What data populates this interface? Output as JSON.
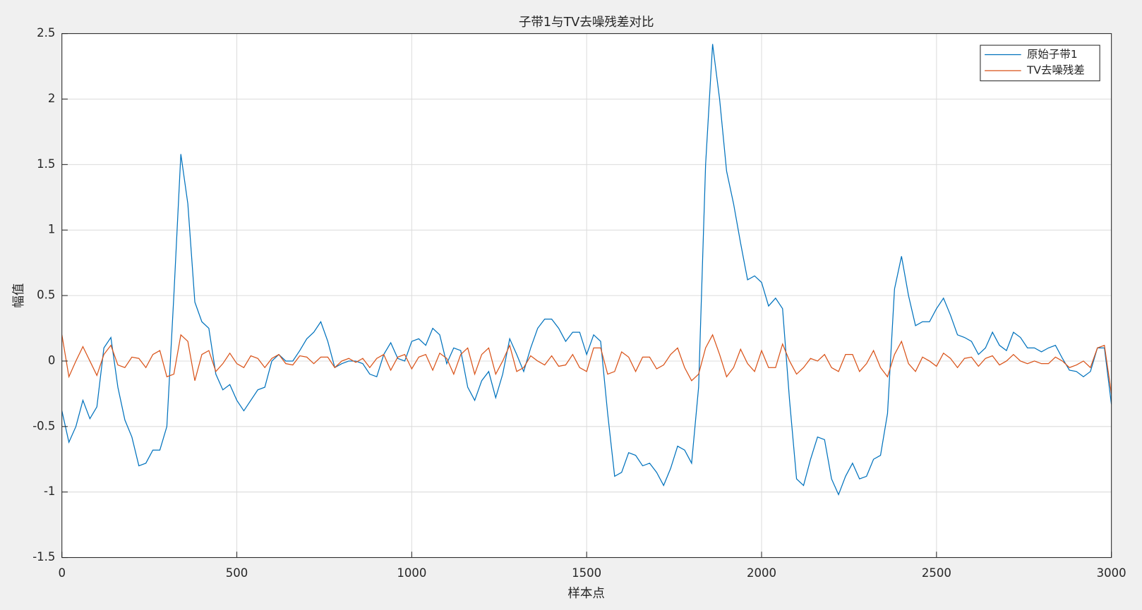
{
  "chart_data": {
    "type": "line",
    "title": "子带1与TV去噪残差对比",
    "x_label": "样本点",
    "y_label": "幅值",
    "x": [
      0,
      20,
      40,
      60,
      80,
      100,
      120,
      140,
      160,
      180,
      200,
      220,
      240,
      260,
      280,
      300,
      320,
      340,
      360,
      380,
      400,
      420,
      440,
      460,
      480,
      500,
      520,
      540,
      560,
      580,
      600,
      620,
      640,
      660,
      680,
      700,
      720,
      740,
      760,
      780,
      800,
      820,
      840,
      860,
      880,
      900,
      920,
      940,
      960,
      980,
      1000,
      1020,
      1040,
      1060,
      1080,
      1100,
      1120,
      1140,
      1160,
      1180,
      1200,
      1220,
      1240,
      1260,
      1280,
      1300,
      1320,
      1340,
      1360,
      1380,
      1400,
      1420,
      1440,
      1460,
      1480,
      1500,
      1520,
      1540,
      1560,
      1580,
      1600,
      1620,
      1640,
      1660,
      1680,
      1700,
      1720,
      1740,
      1760,
      1780,
      1800,
      1820,
      1840,
      1860,
      1880,
      1900,
      1920,
      1940,
      1960,
      1980,
      2000,
      2020,
      2040,
      2060,
      2080,
      2100,
      2120,
      2140,
      2160,
      2180,
      2200,
      2220,
      2240,
      2260,
      2280,
      2300,
      2320,
      2340,
      2360,
      2380,
      2400,
      2420,
      2440,
      2460,
      2480,
      2500,
      2520,
      2540,
      2560,
      2580,
      2600,
      2620,
      2640,
      2660,
      2680,
      2700,
      2720,
      2740,
      2760,
      2780,
      2800,
      2820,
      2840,
      2860,
      2880,
      2900,
      2920,
      2940,
      2960,
      2980,
      3000
    ],
    "series": [
      {
        "name": "原始子带1",
        "color": "#0072BD",
        "values": [
          -0.38,
          -0.62,
          -0.5,
          -0.3,
          -0.44,
          -0.35,
          0.1,
          0.18,
          -0.2,
          -0.45,
          -0.58,
          -0.8,
          -0.78,
          -0.68,
          -0.68,
          -0.5,
          0.5,
          1.58,
          1.2,
          0.45,
          0.3,
          0.25,
          -0.1,
          -0.22,
          -0.18,
          -0.3,
          -0.38,
          -0.3,
          -0.22,
          -0.2,
          0.0,
          0.05,
          0.0,
          0.0,
          0.08,
          0.17,
          0.22,
          0.3,
          0.15,
          -0.05,
          -0.02,
          0.0,
          0.0,
          -0.02,
          -0.1,
          -0.12,
          0.05,
          0.14,
          0.02,
          0.0,
          0.15,
          0.17,
          0.12,
          0.25,
          0.2,
          -0.02,
          0.1,
          0.08,
          -0.2,
          -0.3,
          -0.15,
          -0.08,
          -0.28,
          -0.1,
          0.17,
          0.05,
          -0.08,
          0.1,
          0.25,
          0.32,
          0.32,
          0.25,
          0.15,
          0.22,
          0.22,
          0.05,
          0.2,
          0.15,
          -0.4,
          -0.88,
          -0.85,
          -0.7,
          -0.72,
          -0.8,
          -0.78,
          -0.85,
          -0.95,
          -0.82,
          -0.65,
          -0.68,
          -0.78,
          -0.2,
          1.5,
          2.42,
          2.0,
          1.45,
          1.2,
          0.9,
          0.62,
          0.65,
          0.6,
          0.42,
          0.48,
          0.4,
          -0.3,
          -0.9,
          -0.95,
          -0.75,
          -0.58,
          -0.6,
          -0.9,
          -1.02,
          -0.88,
          -0.78,
          -0.9,
          -0.88,
          -0.75,
          -0.72,
          -0.4,
          0.55,
          0.8,
          0.5,
          0.27,
          0.3,
          0.3,
          0.4,
          0.48,
          0.35,
          0.2,
          0.18,
          0.15,
          0.05,
          0.1,
          0.22,
          0.12,
          0.08,
          0.22,
          0.18,
          0.1,
          0.1,
          0.07,
          0.1,
          0.12,
          0.02,
          -0.07,
          -0.08,
          -0.12,
          -0.08,
          0.1,
          0.1,
          -0.33
        ]
      },
      {
        "name": "TV去噪残差",
        "color": "#D95319",
        "values": [
          0.2,
          -0.12,
          0.0,
          0.11,
          0.0,
          -0.11,
          0.05,
          0.12,
          -0.03,
          -0.05,
          0.03,
          0.02,
          -0.05,
          0.05,
          0.08,
          -0.12,
          -0.1,
          0.2,
          0.15,
          -0.15,
          0.05,
          0.08,
          -0.08,
          -0.02,
          0.06,
          -0.02,
          -0.05,
          0.04,
          0.02,
          -0.05,
          0.02,
          0.05,
          -0.02,
          -0.03,
          0.04,
          0.03,
          -0.02,
          0.03,
          0.03,
          -0.05,
          0.0,
          0.02,
          -0.01,
          0.02,
          -0.05,
          0.02,
          0.05,
          -0.07,
          0.03,
          0.05,
          -0.06,
          0.03,
          0.05,
          -0.07,
          0.06,
          0.02,
          -0.1,
          0.05,
          0.1,
          -0.1,
          0.05,
          0.1,
          -0.1,
          0.0,
          0.12,
          -0.08,
          -0.05,
          0.04,
          0.0,
          -0.03,
          0.04,
          -0.04,
          -0.03,
          0.05,
          -0.05,
          -0.08,
          0.1,
          0.1,
          -0.1,
          -0.08,
          0.07,
          0.03,
          -0.08,
          0.03,
          0.03,
          -0.06,
          -0.03,
          0.05,
          0.1,
          -0.05,
          -0.15,
          -0.1,
          0.1,
          0.2,
          0.05,
          -0.12,
          -0.05,
          0.09,
          -0.02,
          -0.08,
          0.08,
          -0.05,
          -0.05,
          0.13,
          0.0,
          -0.1,
          -0.05,
          0.02,
          0.0,
          0.05,
          -0.05,
          -0.08,
          0.05,
          0.05,
          -0.08,
          -0.02,
          0.08,
          -0.05,
          -0.12,
          0.05,
          0.15,
          -0.02,
          -0.08,
          0.03,
          0.0,
          -0.04,
          0.06,
          0.02,
          -0.05,
          0.02,
          0.03,
          -0.04,
          0.02,
          0.04,
          -0.03,
          0.0,
          0.05,
          0.0,
          -0.02,
          0.0,
          -0.02,
          -0.02,
          0.03,
          0.0,
          -0.05,
          -0.03,
          0.0,
          -0.05,
          0.1,
          0.12,
          -0.25
        ]
      }
    ],
    "xlim": [
      0,
      3000
    ],
    "xticks": [
      0,
      500,
      1000,
      1500,
      2000,
      2500,
      3000
    ],
    "ylim": [
      -1.5,
      2.5
    ],
    "yticks": [
      -1.5,
      -1,
      -0.5,
      0,
      0.5,
      1,
      1.5,
      2,
      2.5
    ],
    "grid": true,
    "legend": "top-right"
  }
}
